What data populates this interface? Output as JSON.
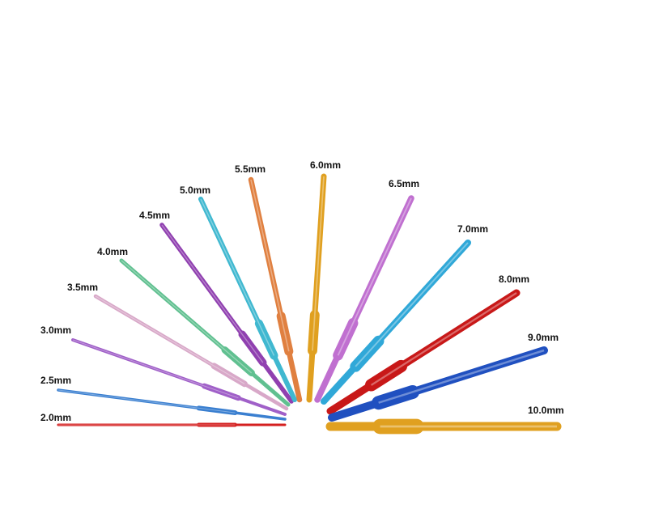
{
  "hooks": [
    {
      "label": "2.0mm"
    },
    {
      "label": "2.5mm"
    },
    {
      "label": "3.0mm"
    },
    {
      "label": "3.5mm"
    },
    {
      "label": "4.0mm"
    },
    {
      "label": "4.5mm"
    },
    {
      "label": "5.0mm"
    },
    {
      "label": "5.5mm"
    },
    {
      "label": "6.0mm"
    },
    {
      "label": "6.5mm"
    },
    {
      "label": "7.0mm"
    },
    {
      "label": "8.0mm"
    },
    {
      "label": "9.0mm"
    },
    {
      "label": "10.0mm"
    }
  ]
}
